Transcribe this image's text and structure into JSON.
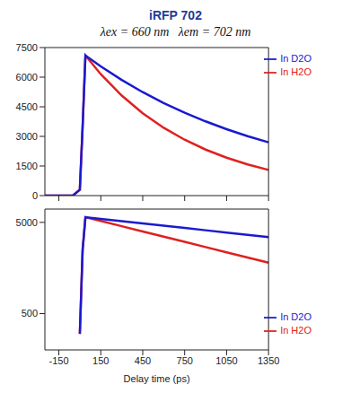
{
  "chart_data": [
    {
      "type": "line",
      "title": "iRFP 702",
      "subtitle": "λex = 660 nm   λem = 702 nm",
      "x": [
        -250,
        -150,
        -50,
        0,
        20,
        40,
        150,
        300,
        450,
        600,
        750,
        900,
        1050,
        1200,
        1350
      ],
      "series": [
        {
          "name": "In H2O",
          "color": "#e02020",
          "values": [
            0,
            0,
            0,
            300,
            3500,
            7100,
            6150,
            5065,
            4170,
            3435,
            2830,
            2330,
            1920,
            1580,
            1300
          ]
        },
        {
          "name": "In D2O",
          "color": "#1a1ad0",
          "values": [
            0,
            0,
            0,
            300,
            3500,
            7100,
            6545,
            5860,
            5240,
            4690,
            4200,
            3760,
            3365,
            3010,
            2700
          ]
        }
      ],
      "xlim": [
        -250,
        1350
      ],
      "xticks": [
        -150,
        150,
        450,
        750,
        1050,
        1350
      ],
      "ylim": [
        0,
        7500
      ],
      "yticks": [
        0,
        1500,
        3000,
        4500,
        6000,
        7500
      ],
      "tick_labels": "y",
      "legend": "upper right"
    },
    {
      "type": "line",
      "x_label": "Delay time (ps)",
      "x": [
        -250,
        -150,
        -50,
        0,
        20,
        40,
        150,
        300,
        450,
        600,
        750,
        900,
        1050,
        1200,
        1350
      ],
      "series": [
        {
          "name": "In H2O",
          "color": "#e02020",
          "values": [
            null,
            null,
            null,
            300,
            2500,
            5700,
            5180,
            4540,
            3980,
            3490,
            3060,
            2680,
            2350,
            2060,
            1810
          ]
        },
        {
          "name": "In D2O",
          "color": "#1a1ad0",
          "values": [
            null,
            null,
            null,
            300,
            2500,
            5700,
            5470,
            5160,
            4870,
            4600,
            4340,
            4100,
            3870,
            3650,
            3450
          ]
        }
      ],
      "xlim": [
        -250,
        1350
      ],
      "xticks": [
        -150,
        150,
        450,
        750,
        1050,
        1350
      ],
      "ylim": [
        200,
        7000
      ],
      "yticks": [
        500,
        5000
      ],
      "log": "y",
      "legend": "lower right"
    }
  ]
}
